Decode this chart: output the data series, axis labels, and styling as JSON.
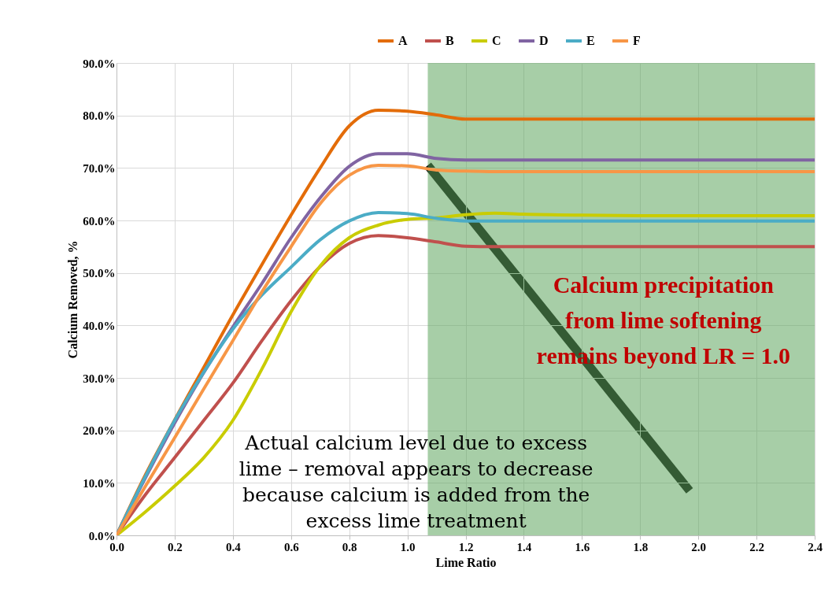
{
  "chart_data": {
    "type": "line",
    "xlabel": "Lime Ratio",
    "ylabel": "Calcium Removed, %",
    "x": [
      0,
      0.1,
      0.2,
      0.3,
      0.4,
      0.5,
      0.6,
      0.7,
      0.8,
      0.9,
      1.0,
      1.1,
      1.2,
      1.3,
      1.4,
      1.6,
      1.8,
      2.0,
      2.2,
      2.4
    ],
    "series": [
      {
        "name": "A",
        "color": "#e36c09",
        "values": [
          0,
          11.6,
          22,
          32,
          42,
          51.6,
          61,
          70,
          78,
          81,
          80.8,
          80.1,
          79.3,
          79.3,
          79.3,
          79.3,
          79.3,
          79.3,
          79.3,
          79.3
        ]
      },
      {
        "name": "B",
        "color": "#c0504d",
        "values": [
          0,
          7.8,
          14.8,
          21.9,
          29,
          37.1,
          44.7,
          51.2,
          55.6,
          57.1,
          56.7,
          55.9,
          55.1,
          55,
          55,
          55,
          55,
          55,
          55,
          55
        ]
      },
      {
        "name": "C",
        "color": "#c9cc00",
        "values": [
          0,
          4.5,
          9.4,
          14.8,
          21.9,
          31.7,
          42.6,
          51.3,
          56.7,
          59.1,
          60.2,
          60.5,
          61.1,
          61.4,
          61.2,
          61,
          60.9,
          60.9,
          60.9,
          60.9
        ]
      },
      {
        "name": "D",
        "color": "#8064a2",
        "values": [
          0,
          11,
          21.4,
          31,
          39.7,
          48,
          56.7,
          64.3,
          70.3,
          72.7,
          72.7,
          71.8,
          71.5,
          71.5,
          71.5,
          71.5,
          71.5,
          71.5,
          71.5,
          71.5
        ]
      },
      {
        "name": "E",
        "color": "#4bacc6",
        "values": [
          0,
          11.3,
          21.9,
          31.1,
          39.3,
          45.8,
          51.1,
          56.3,
          59.9,
          61.5,
          61.3,
          60.4,
          59.9,
          59.9,
          59.9,
          59.9,
          59.9,
          59.9,
          59.9,
          59.9
        ]
      },
      {
        "name": "F",
        "color": "#f79646",
        "values": [
          0,
          9.4,
          18.6,
          27.9,
          37.1,
          46.4,
          55,
          63.2,
          68.6,
          70.5,
          70.4,
          69.6,
          69.4,
          69.3,
          69.3,
          69.3,
          69.3,
          69.3,
          69.3,
          69.3
        ]
      }
    ],
    "xlim": [
      0,
      2.4
    ],
    "xticks": [
      {
        "value": 0,
        "label": "0.0"
      },
      0.2,
      0.4,
      0.6,
      0.8,
      {
        "value": 1,
        "label": "1.0"
      },
      1.2,
      1.4,
      1.6,
      1.8,
      {
        "value": 2,
        "label": "2.0"
      },
      2.2,
      2.4
    ],
    "ylim": [
      0,
      90
    ],
    "yticks": [
      {
        "value": 0,
        "label": "0.0%"
      },
      {
        "value": 10,
        "label": "10.0%"
      },
      {
        "value": 20,
        "label": "20.0%"
      },
      {
        "value": 30,
        "label": "30.0%"
      },
      {
        "value": 40,
        "label": "40.0%"
      },
      {
        "value": 50,
        "label": "50.0%"
      },
      {
        "value": 60,
        "label": "60.0%"
      },
      {
        "value": 70,
        "label": "70.0%"
      },
      {
        "value": 80,
        "label": "80.0%"
      },
      {
        "value": 90,
        "label": "90.0%"
      }
    ],
    "grid": true,
    "legend": "top",
    "marker": "none",
    "line_style": "solid",
    "bands": [
      {
        "axis": "x",
        "from": 1.07,
        "to": 2.4,
        "color": "#5fa55f"
      }
    ],
    "annotations": [
      "Calcium precipitation from lime softening remains beyond LR = 1.0",
      "Actual calcium level due to excess lime – removal appears to decrease because calcium is added from the excess lime treatment"
    ]
  }
}
